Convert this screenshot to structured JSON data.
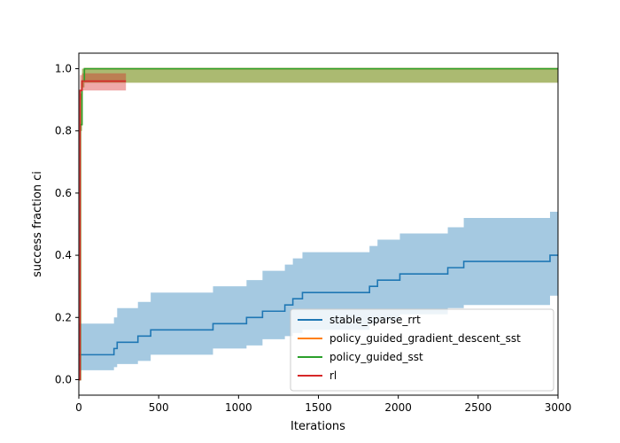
{
  "chart_data": {
    "type": "line",
    "title": "",
    "xlabel": "Iterations",
    "ylabel": "success fraction ci",
    "xlim": [
      0,
      3000
    ],
    "ylim": [
      -0.05,
      1.05
    ],
    "xticks": [
      0,
      500,
      1000,
      1500,
      2000,
      2500,
      3000
    ],
    "xtick_labels": [
      "0",
      "500",
      "1000",
      "1500",
      "2000",
      "2500",
      "3000"
    ],
    "yticks": [
      0.0,
      0.2,
      0.4,
      0.6,
      0.8,
      1.0
    ],
    "ytick_labels": [
      "0.0",
      "0.2",
      "0.4",
      "0.6",
      "0.8",
      "1.0"
    ],
    "grid": false,
    "legend_position": "lower-right",
    "series": [
      {
        "name": "stable_sparse_rrt",
        "color": "#1f77b4",
        "band_color": "#1f77b4",
        "band_opacity": 0.4,
        "steps": [
          {
            "x": 0,
            "y": 0.08,
            "lo": 0.03,
            "hi": 0.18
          },
          {
            "x": 5,
            "y": 0.08,
            "lo": 0.03,
            "hi": 0.18
          },
          {
            "x": 220,
            "y": 0.1,
            "lo": 0.04,
            "hi": 0.2
          },
          {
            "x": 240,
            "y": 0.12,
            "lo": 0.05,
            "hi": 0.23
          },
          {
            "x": 370,
            "y": 0.14,
            "lo": 0.06,
            "hi": 0.25
          },
          {
            "x": 450,
            "y": 0.16,
            "lo": 0.08,
            "hi": 0.28
          },
          {
            "x": 840,
            "y": 0.18,
            "lo": 0.1,
            "hi": 0.3
          },
          {
            "x": 1050,
            "y": 0.2,
            "lo": 0.11,
            "hi": 0.32
          },
          {
            "x": 1150,
            "y": 0.22,
            "lo": 0.13,
            "hi": 0.35
          },
          {
            "x": 1290,
            "y": 0.24,
            "lo": 0.14,
            "hi": 0.37
          },
          {
            "x": 1340,
            "y": 0.26,
            "lo": 0.15,
            "hi": 0.39
          },
          {
            "x": 1400,
            "y": 0.28,
            "lo": 0.16,
            "hi": 0.41
          },
          {
            "x": 1820,
            "y": 0.3,
            "lo": 0.18,
            "hi": 0.43
          },
          {
            "x": 1870,
            "y": 0.32,
            "lo": 0.19,
            "hi": 0.45
          },
          {
            "x": 2010,
            "y": 0.34,
            "lo": 0.21,
            "hi": 0.47
          },
          {
            "x": 2310,
            "y": 0.36,
            "lo": 0.23,
            "hi": 0.49
          },
          {
            "x": 2410,
            "y": 0.38,
            "lo": 0.24,
            "hi": 0.52
          },
          {
            "x": 2950,
            "y": 0.4,
            "lo": 0.27,
            "hi": 0.54
          }
        ]
      },
      {
        "name": "policy_guided_gradient_descent_sst",
        "color": "#ff7f0e",
        "band_color": "#ff7f0e",
        "band_opacity": 0.4,
        "steps": [
          {
            "x": 0,
            "y": 0.0,
            "lo": 0.0,
            "hi": 0.0
          },
          {
            "x": 10,
            "y": 0.82,
            "lo": 0.8,
            "hi": 0.92
          },
          {
            "x": 20,
            "y": 0.96,
            "lo": 0.94,
            "hi": 1.0
          },
          {
            "x": 35,
            "y": 1.0,
            "lo": 0.955,
            "hi": 1.0
          }
        ]
      },
      {
        "name": "policy_guided_sst",
        "color": "#2ca02c",
        "band_color": "#2ca02c",
        "band_opacity": 0.4,
        "steps": [
          {
            "x": 0,
            "y": 0.0,
            "lo": 0.0,
            "hi": 0.0
          },
          {
            "x": 10,
            "y": 0.82,
            "lo": 0.8,
            "hi": 0.92
          },
          {
            "x": 20,
            "y": 0.96,
            "lo": 0.94,
            "hi": 1.0
          },
          {
            "x": 35,
            "y": 1.0,
            "lo": 0.955,
            "hi": 1.0
          }
        ]
      },
      {
        "name": "rl",
        "color": "#d62728",
        "band_color": "#d62728",
        "band_opacity": 0.4,
        "x_end": 295,
        "steps": [
          {
            "x": 0,
            "y": 0.0,
            "lo": 0.0,
            "hi": 0.0
          },
          {
            "x": 8,
            "y": 0.93,
            "lo": 0.9,
            "hi": 0.98
          },
          {
            "x": 20,
            "y": 0.96,
            "lo": 0.93,
            "hi": 0.985
          }
        ]
      }
    ]
  }
}
